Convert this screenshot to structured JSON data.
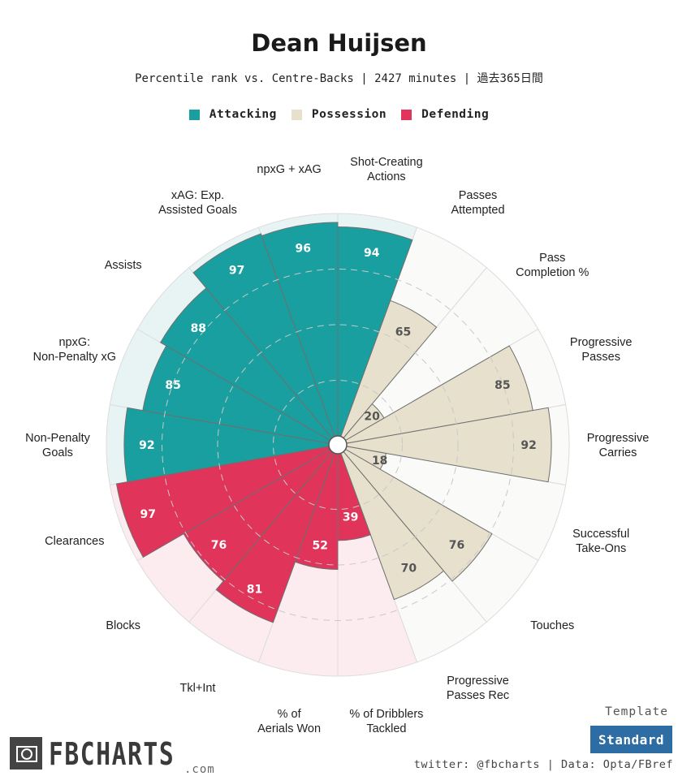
{
  "header": {
    "title": "Dean Huijsen",
    "subtitle": "Percentile rank vs. Centre-Backs | 2427 minutes | 過去365日間"
  },
  "colors": {
    "attacking": "#1a9fa0",
    "possession": "#e6e0cd",
    "defending": "#e0345b"
  },
  "legend": [
    {
      "label": "Attacking",
      "color": "#1a9fa0"
    },
    {
      "label": "Possession",
      "color": "#e6e0cd"
    },
    {
      "label": "Defending",
      "color": "#e0345b"
    }
  ],
  "chart_data": {
    "type": "polar-bar",
    "title": "Dean Huijsen",
    "subtitle": "Percentile rank vs. Centre-Backs | 2427 minutes | 過去365日間",
    "rlim": [
      0,
      100
    ],
    "grid_levels": [
      25,
      50,
      75
    ],
    "series": [
      {
        "name": "Attacking",
        "categories": [
          {
            "label": "Non-Penalty Goals",
            "value": 92
          },
          {
            "label": "npxG: Non-Penalty xG",
            "value": 85
          },
          {
            "label": "Assists",
            "value": 88
          },
          {
            "label": "xAG: Exp. Assisted Goals",
            "value": 97
          },
          {
            "label": "npxG + xAG",
            "value": 96
          },
          {
            "label": "Shot-Creating Actions",
            "value": 94
          }
        ]
      },
      {
        "name": "Possession",
        "categories": [
          {
            "label": "Passes Attempted",
            "value": 65
          },
          {
            "label": "Pass Completion %",
            "value": 20
          },
          {
            "label": "Progressive Passes",
            "value": 85
          },
          {
            "label": "Progressive Carries",
            "value": 92
          },
          {
            "label": "Successful Take-Ons",
            "value": 18
          },
          {
            "label": "Touches",
            "value": 76
          },
          {
            "label": "Progressive Passes Rec",
            "value": 70
          }
        ]
      },
      {
        "name": "Defending",
        "categories": [
          {
            "label": "% of Dribblers Tackled",
            "value": 39
          },
          {
            "label": "% of Aerials Won",
            "value": 52
          },
          {
            "label": "Tkl+Int",
            "value": 81
          },
          {
            "label": "Blocks",
            "value": 76
          },
          {
            "label": "Clearances",
            "value": 97
          }
        ]
      }
    ]
  },
  "footer": {
    "logo_text": "FBCHARTS",
    "logo_suffix": ".com",
    "template_label": "Template",
    "template_value": "Standard",
    "credits": "twitter: @fbcharts | Data: Opta/FBref"
  }
}
